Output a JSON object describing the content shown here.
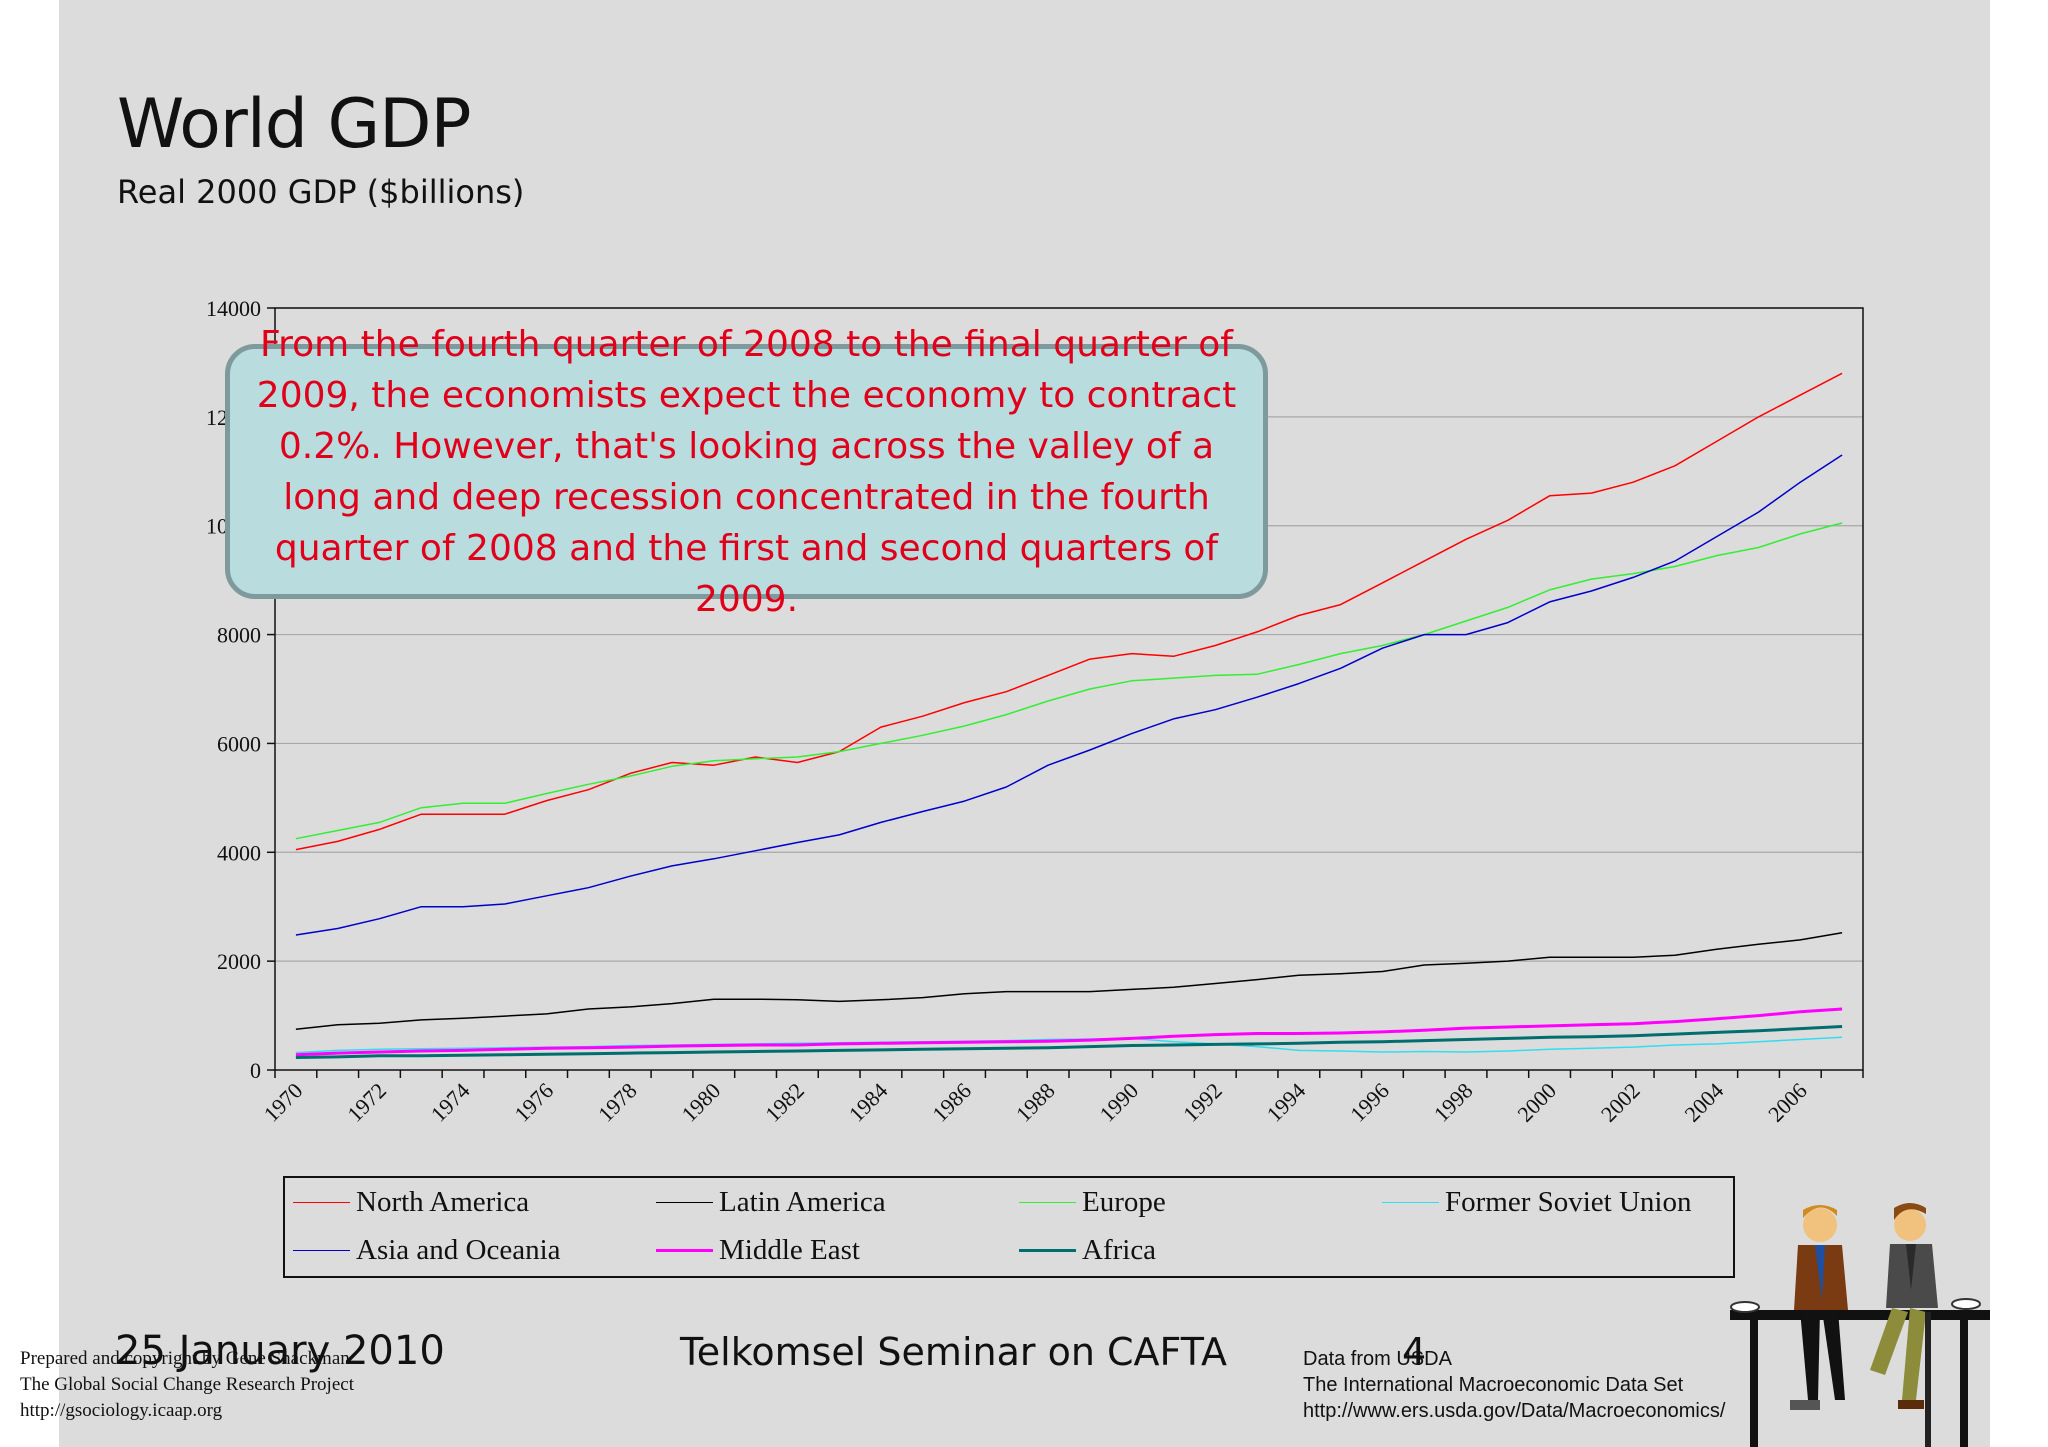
{
  "slide": {
    "title": "World GDP",
    "subtitle": "Real 2000 GDP ($billions)",
    "callout": "From the fourth quarter of 2008 to the final quarter of 2009, the economists expect the economy to contract 0.2%. However, that's looking across the valley of a long and deep recession concentrated in the fourth quarter of 2008 and the first and second quarters of 2009.",
    "footer_date": "25 January 2010",
    "footer_title": "Telkomsel Seminar on CAFTA",
    "page_number": "4",
    "credit_left": [
      "Prepared and copyright by Gene Shackman",
      "The Global Social Change Research Project",
      "http://gsociology.icaap.org"
    ],
    "credit_right": [
      "Data from USDA",
      "The International Macroeconomic Data Set",
      "http://www.ers.usda.gov/Data/Macroeconomics/"
    ],
    "colors": {
      "background": "#dcdcdc",
      "callout_fill": "#b9dcdf",
      "callout_text": "#e0001a"
    }
  },
  "chart_data": {
    "type": "line",
    "x": [
      1970,
      1971,
      1972,
      1973,
      1974,
      1975,
      1976,
      1977,
      1978,
      1979,
      1980,
      1981,
      1982,
      1983,
      1984,
      1985,
      1986,
      1987,
      1988,
      1989,
      1990,
      1991,
      1992,
      1993,
      1994,
      1995,
      1996,
      1997,
      1998,
      1999,
      2000,
      2001,
      2002,
      2003,
      2004,
      2005,
      2006,
      2007
    ],
    "x_tick_labels": [
      "1970",
      "1972",
      "1974",
      "1976",
      "1978",
      "1980",
      "1982",
      "1984",
      "1986",
      "1988",
      "1990",
      "1992",
      "1994",
      "1996",
      "1998",
      "2000",
      "2002",
      "2004",
      "2006"
    ],
    "y_tick_labels": [
      "0",
      "2000",
      "4000",
      "6000",
      "8000",
      "10000",
      "12000",
      "14000"
    ],
    "ylim": [
      0,
      14000
    ],
    "grid": "horizontal",
    "legend_position": "bottom",
    "series": [
      {
        "name": "North America",
        "color": "#ff0000",
        "width": 1.5,
        "values": [
          4050,
          4200,
          4420,
          4700,
          4700,
          4700,
          4950,
          5150,
          5450,
          5650,
          5600,
          5750,
          5650,
          5850,
          6300,
          6500,
          6750,
          6950,
          7250,
          7550,
          7650,
          7600,
          7800,
          8050,
          8350,
          8550,
          8950,
          9350,
          9750,
          10100,
          10550,
          10600,
          10800,
          11100,
          11550,
          12000,
          12400,
          12800
        ]
      },
      {
        "name": "Latin America",
        "color": "#000000",
        "width": 1.5,
        "values": [
          750,
          830,
          860,
          920,
          950,
          990,
          1030,
          1120,
          1160,
          1220,
          1300,
          1300,
          1290,
          1260,
          1290,
          1330,
          1400,
          1440,
          1440,
          1440,
          1480,
          1520,
          1590,
          1660,
          1740,
          1770,
          1810,
          1930,
          1960,
          2000,
          2070,
          2070,
          2070,
          2110,
          2220,
          2310,
          2390,
          2520
        ]
      },
      {
        "name": "Europe",
        "color": "#33ee33",
        "width": 1.5,
        "values": [
          4250,
          4400,
          4550,
          4820,
          4900,
          4900,
          5080,
          5250,
          5400,
          5580,
          5680,
          5720,
          5750,
          5850,
          6000,
          6150,
          6320,
          6530,
          6780,
          7000,
          7150,
          7200,
          7250,
          7270,
          7450,
          7650,
          7800,
          8000,
          8250,
          8500,
          8820,
          9020,
          9120,
          9250,
          9450,
          9600,
          9850,
          10050
        ]
      },
      {
        "name": "Former Soviet Union",
        "color": "#33ddee",
        "width": 1.5,
        "values": [
          320,
          360,
          380,
          390,
          400,
          410,
          420,
          430,
          450,
          460,
          470,
          480,
          490,
          500,
          510,
          520,
          530,
          540,
          560,
          570,
          580,
          520,
          480,
          430,
          360,
          350,
          330,
          340,
          330,
          350,
          380,
          400,
          420,
          460,
          480,
          520,
          560,
          600
        ]
      },
      {
        "name": "Asia and Oceania",
        "color": "#0000cc",
        "width": 1.5,
        "values": [
          2480,
          2600,
          2780,
          3000,
          3000,
          3050,
          3200,
          3350,
          3560,
          3750,
          3880,
          4030,
          4180,
          4320,
          4550,
          4750,
          4940,
          5200,
          5600,
          5880,
          6180,
          6450,
          6620,
          6850,
          7100,
          7380,
          7750,
          8000,
          8000,
          8220,
          8600,
          8800,
          9050,
          9350,
          9800,
          10250,
          10800,
          11300
        ]
      },
      {
        "name": "Middle East",
        "color": "#ff00ff",
        "width": 3,
        "values": [
          280,
          310,
          330,
          350,
          360,
          380,
          400,
          410,
          420,
          440,
          450,
          460,
          460,
          480,
          490,
          500,
          510,
          520,
          530,
          550,
          580,
          620,
          650,
          670,
          670,
          680,
          700,
          730,
          770,
          790,
          810,
          830,
          850,
          890,
          940,
          1000,
          1070,
          1120
        ]
      },
      {
        "name": "Africa",
        "color": "#006e6e",
        "width": 3,
        "values": [
          230,
          240,
          260,
          260,
          270,
          280,
          290,
          300,
          310,
          320,
          330,
          340,
          350,
          360,
          370,
          380,
          390,
          400,
          410,
          430,
          450,
          460,
          470,
          480,
          490,
          510,
          520,
          540,
          560,
          580,
          600,
          610,
          630,
          660,
          690,
          720,
          760,
          800
        ]
      }
    ]
  }
}
